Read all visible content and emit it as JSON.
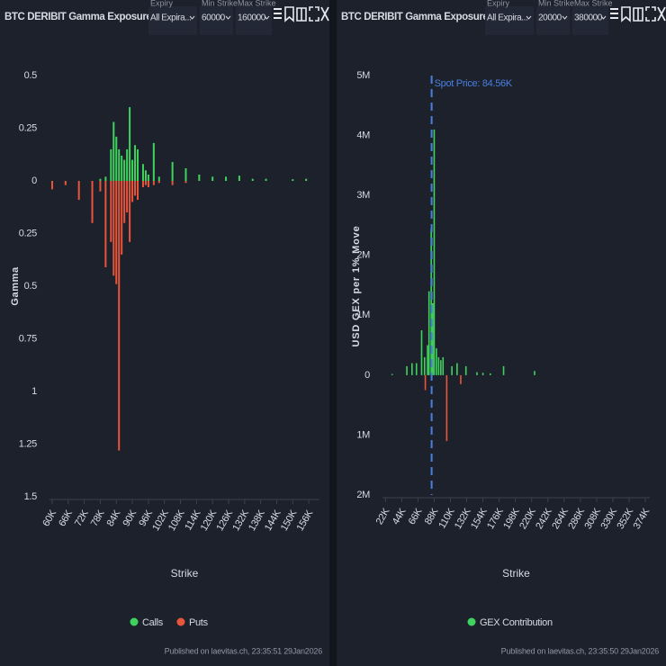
{
  "chart_data": [
    {
      "type": "bar",
      "title": "BTC DERIBIT Gamma Exposure All ...",
      "x_label": "Strike",
      "y_label": "Gamma",
      "x": [
        60000,
        65000,
        70000,
        75000,
        78000,
        80000,
        82000,
        83000,
        84000,
        85000,
        86000,
        87000,
        88000,
        89000,
        90000,
        91000,
        92000,
        94000,
        95000,
        96000,
        98000,
        100000,
        105000,
        110000,
        115000,
        120000,
        125000,
        130000,
        135000,
        140000,
        150000,
        155000
      ],
      "series": [
        {
          "name": "Calls",
          "color": "#3fd35e",
          "values": [
            null,
            null,
            null,
            null,
            0.01,
            0.02,
            0.15,
            0.28,
            0.21,
            0.15,
            0.12,
            0.1,
            0.15,
            0.35,
            0.1,
            0.17,
            0.15,
            0.08,
            0.05,
            0.03,
            0.18,
            0.02,
            0.09,
            0.06,
            0.03,
            0.02,
            0.02,
            0.025,
            0.01,
            0.01,
            0.008,
            0.01
          ]
        },
        {
          "name": "Puts",
          "color": "#e9553b",
          "values": [
            -0.04,
            -0.02,
            -0.09,
            -0.2,
            -0.05,
            -0.41,
            -0.29,
            -0.45,
            -0.49,
            -1.28,
            -0.35,
            -0.2,
            -0.15,
            -0.29,
            -0.1,
            -0.07,
            -0.09,
            -0.03,
            -0.02,
            -0.03,
            -0.02,
            -0.01,
            -0.02,
            -0.01,
            null,
            null,
            null,
            null,
            null,
            null,
            null,
            null
          ]
        }
      ],
      "xlim": [
        59000,
        160000
      ],
      "xticks": [
        {
          "value": 60000,
          "label": "60K"
        },
        {
          "value": 66000,
          "label": "66K"
        },
        {
          "value": 72000,
          "label": "72K"
        },
        {
          "value": 78000,
          "label": "78K"
        },
        {
          "value": 84000,
          "label": "84K"
        },
        {
          "value": 90000,
          "label": "90K"
        },
        {
          "value": 96000,
          "label": "96K"
        },
        {
          "value": 102000,
          "label": "102K"
        },
        {
          "value": 108000,
          "label": "108K"
        },
        {
          "value": 114000,
          "label": "114K"
        },
        {
          "value": 120000,
          "label": "120K"
        },
        {
          "value": 126000,
          "label": "126K"
        },
        {
          "value": 132000,
          "label": "132K"
        },
        {
          "value": 138000,
          "label": "138K"
        },
        {
          "value": 144000,
          "label": "144K"
        },
        {
          "value": 150000,
          "label": "150K"
        },
        {
          "value": 156000,
          "label": "156K"
        }
      ],
      "ylim": [
        -1.5,
        0.5
      ],
      "yticks": [
        0.5,
        0.25,
        0,
        {
          "value": -0.25,
          "label": "0.25"
        },
        {
          "value": -0.5,
          "label": "0.5"
        },
        {
          "value": -0.75,
          "label": "0.75"
        },
        {
          "value": -1,
          "label": "1"
        },
        {
          "value": -1.25,
          "label": "1.25"
        },
        {
          "value": -1.5,
          "label": "1.5"
        }
      ],
      "grid": false,
      "legend": "bottom"
    },
    {
      "type": "bar",
      "title": "BTC DERIBIT Gamma Exposure Pro...",
      "x_label": "Strike",
      "y_label": "USD GEX per 1% Move",
      "x": [
        31000,
        51000,
        58000,
        64000,
        71000,
        75000,
        76000,
        79000,
        81000,
        84000,
        86000,
        88000,
        91000,
        94000,
        97000,
        100000,
        105000,
        112000,
        119000,
        124000,
        131000,
        146000,
        154000,
        164000,
        182000,
        224000
      ],
      "series": [
        {
          "name": "GEX Contribution",
          "color": "#3fd35e",
          "negative_color": "#e9553b",
          "values": [
            20000,
            150000,
            200000,
            200000,
            750000,
            300000,
            -250000,
            500000,
            1400000,
            2450000,
            1200000,
            4100000,
            450000,
            300000,
            250000,
            300000,
            -1100000,
            150000,
            200000,
            -150000,
            150000,
            50000,
            40000,
            30000,
            150000,
            70000
          ]
        }
      ],
      "spot_price": 84560,
      "spot_label": "Spot Price: 84.56K",
      "spot_color": "#4a7fe0",
      "xlim": [
        18000,
        380000
      ],
      "xticks": [
        {
          "value": 22000,
          "label": "22K"
        },
        {
          "value": 44000,
          "label": "44K"
        },
        {
          "value": 66000,
          "label": "66K"
        },
        {
          "value": 88000,
          "label": "88K"
        },
        {
          "value": 110000,
          "label": "110K"
        },
        {
          "value": 132000,
          "label": "132K"
        },
        {
          "value": 154000,
          "label": "154K"
        },
        {
          "value": 176000,
          "label": "176K"
        },
        {
          "value": 198000,
          "label": "198K"
        },
        {
          "value": 220000,
          "label": "220K"
        },
        {
          "value": 242000,
          "label": "242K"
        },
        {
          "value": 264000,
          "label": "264K"
        },
        {
          "value": 286000,
          "label": "286K"
        },
        {
          "value": 308000,
          "label": "308K"
        },
        {
          "value": 330000,
          "label": "330K"
        },
        {
          "value": 352000,
          "label": "352K"
        },
        {
          "value": 374000,
          "label": "374K"
        }
      ],
      "ylim": [
        -2000000,
        5000000
      ],
      "yticks": [
        {
          "value": 5000000,
          "label": "5M"
        },
        {
          "value": 4000000,
          "label": "4M"
        },
        {
          "value": 3000000,
          "label": "3M"
        },
        {
          "value": 2000000,
          "label": "2M"
        },
        {
          "value": 1000000,
          "label": "1M"
        },
        0,
        {
          "value": -1000000,
          "label": "1M"
        },
        {
          "value": -2000000,
          "label": "2M"
        }
      ],
      "grid": false,
      "legend": "bottom"
    }
  ],
  "panels": [
    {
      "controls": [
        {
          "label": "Expiry",
          "value": "All Expira..."
        },
        {
          "label": "Min Strike",
          "value": "60000"
        },
        {
          "label": "Max Strike",
          "value": "160000"
        }
      ],
      "footer": "Published on laevitas.ch, 23:35:51 29Jan2026"
    },
    {
      "controls": [
        {
          "label": "Expiry",
          "value": "All Expira..."
        },
        {
          "label": "Min Strike",
          "value": "20000"
        },
        {
          "label": "Max Strike",
          "value": "380000"
        }
      ],
      "footer": "Published on laevitas.ch, 23:35:50 29Jan2026"
    }
  ]
}
